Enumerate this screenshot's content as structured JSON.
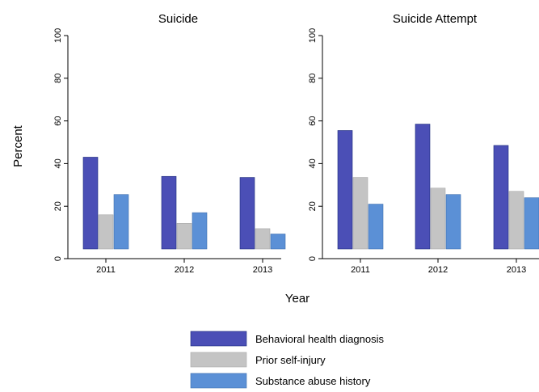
{
  "chart_data": {
    "type": "bar",
    "ylabel": "Percent",
    "xlabel": "Year",
    "categories": [
      "2011",
      "2012",
      "2013"
    ],
    "ylim": [
      0,
      100
    ],
    "yticks": [
      "0",
      "20",
      "40",
      "60",
      "80",
      "100"
    ],
    "grid": false,
    "legend": {
      "placement": "bottom-center",
      "entries": [
        {
          "name": "Behavioral health diagnosis",
          "color": "#4b4fb6"
        },
        {
          "name": "Prior self-injury",
          "color": "#c4c4c4"
        },
        {
          "name": "Substance abuse history",
          "color": "#5b90d6"
        }
      ]
    },
    "panels": [
      {
        "title": "Suicide",
        "series": [
          {
            "name": "Behavioral health diagnosis",
            "values": [
              43,
              34,
              33.5
            ]
          },
          {
            "name": "Prior self-injury",
            "values": [
              16,
              12,
              9.5
            ]
          },
          {
            "name": "Substance abuse history",
            "values": [
              25.5,
              17,
              7
            ]
          }
        ]
      },
      {
        "title": "Suicide Attempt",
        "series": [
          {
            "name": "Behavioral health diagnosis",
            "values": [
              55.5,
              58.5,
              48.5
            ]
          },
          {
            "name": "Prior self-injury",
            "values": [
              33.5,
              28.5,
              27
            ]
          },
          {
            "name": "Substance abuse history",
            "values": [
              21,
              25.5,
              24
            ]
          }
        ]
      }
    ]
  }
}
